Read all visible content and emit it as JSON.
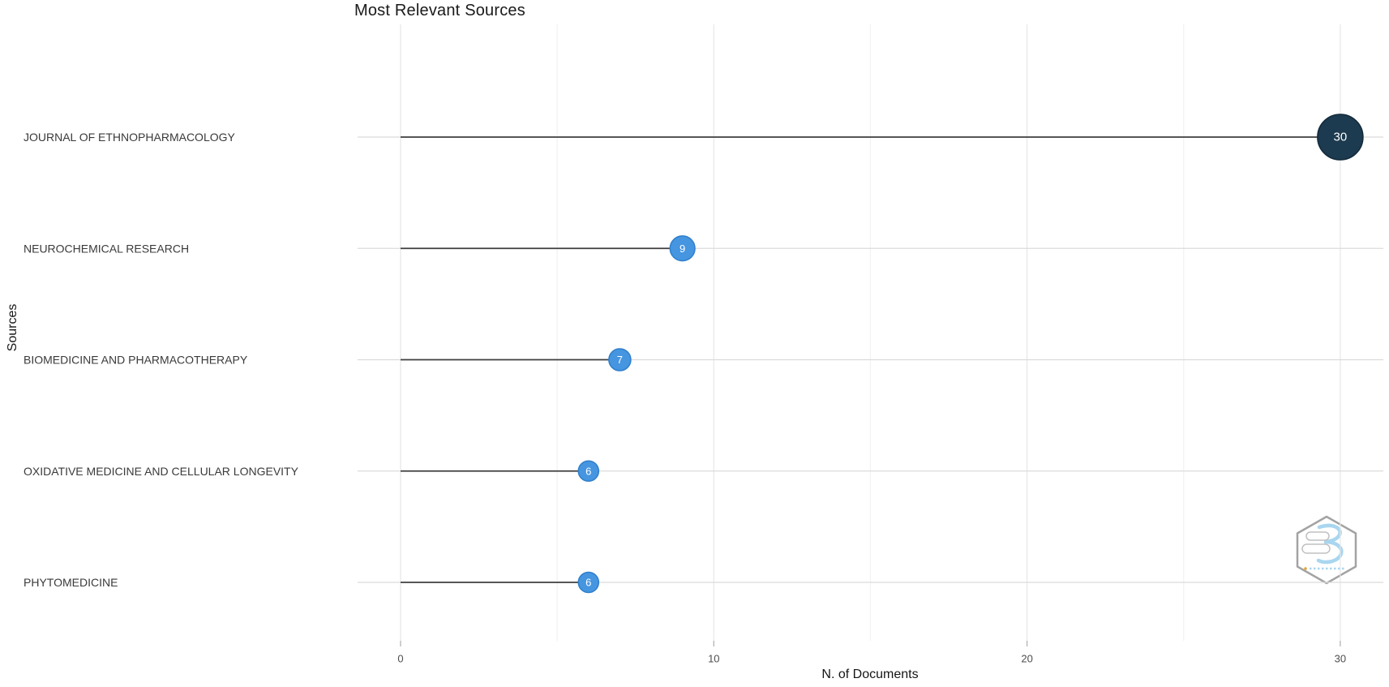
{
  "chart_data": {
    "type": "scatter",
    "style": "lollipop",
    "orientation": "horizontal",
    "title": "Most Relevant Sources",
    "xlabel": "N. of Documents",
    "ylabel": "Sources",
    "categories": [
      "JOURNAL OF ETHNOPHARMACOLOGY",
      "NEUROCHEMICAL RESEARCH",
      "BIOMEDICINE AND PHARMACOTHERAPY",
      "OXIDATIVE MEDICINE AND CELLULAR LONGEVITY",
      "PHYTOMEDICINE"
    ],
    "values": [
      30,
      9,
      7,
      6,
      6
    ],
    "xlim": [
      0,
      30
    ],
    "xticks": [
      0,
      10,
      20,
      30
    ],
    "xticks_minor": [
      5,
      15,
      25
    ],
    "grid": true,
    "legend": "none",
    "colors": {
      "point": "#4595E0",
      "point_stroke": "#2F7FCB",
      "point_max": "#1C3A50",
      "point_max_stroke": "#132939",
      "stem": "#3F3F3F",
      "row_guide": "#DBDBDB",
      "grid_major": "#E7E7E7",
      "grid_minor": "#F2F2F2",
      "axis_tick": "#B3B3B3",
      "category_text": "#3A3A3A",
      "tick_text": "#4D4D4D",
      "value_text": "#FFFFFF"
    }
  },
  "watermark": {
    "icon": "bibliometrix-logo",
    "hex_stroke": "#A3A3A3",
    "glyph_color": "#A9D6EF",
    "accent_color": "#E8A33D"
  }
}
